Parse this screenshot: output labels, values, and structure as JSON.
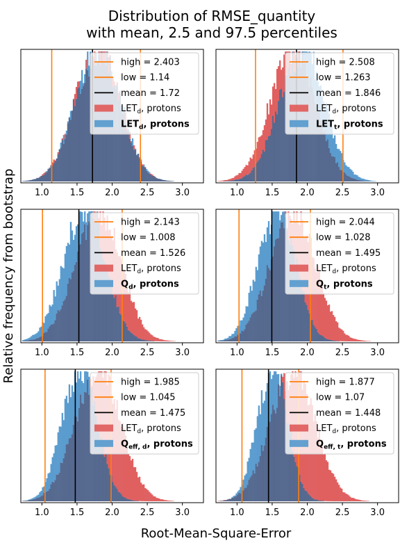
{
  "figure": {
    "title_line1": "Distribution of RMSE_quantity",
    "title_line2": "with mean, 2.5 and 97.5 percentiles",
    "xlabel": "Root-Mean-Square-Error",
    "ylabel": "Relative frequency from bootstrap"
  },
  "colors": {
    "reference_hist": "#e06060",
    "compared_hist": "#5b9ccf",
    "overlap": "#56698f",
    "percentile_line": "#ff7f0e",
    "mean_line": "#000000"
  },
  "chart_data": [
    {
      "type": "histogram",
      "panel": "top-left",
      "xlim": [
        0.7,
        3.3
      ],
      "xticks": [
        "1.0",
        "1.5",
        "2.0",
        "2.5",
        "3.0"
      ],
      "high": 2.403,
      "low": 1.14,
      "mean": 1.72,
      "legend": {
        "high": "high = 2.403",
        "low": "low = 1.14",
        "mean": "mean = 1.72",
        "ref_main": "LET",
        "ref_sub": "d",
        "ref_tail": ", protons",
        "cmp_main": "LET",
        "cmp_sub": "d",
        "cmp_tail": ", protons"
      },
      "series": [
        {
          "label": "LETd, protons",
          "dist_mean": 1.72,
          "dist_sd": 0.315,
          "dist_skew": 0.35
        },
        {
          "label": "LETd, protons",
          "dist_mean": 1.72,
          "dist_sd": 0.315,
          "dist_skew": 0.35
        }
      ]
    },
    {
      "type": "histogram",
      "panel": "top-right",
      "xlim": [
        0.7,
        3.3
      ],
      "xticks": [
        "1.0",
        "1.5",
        "2.0",
        "2.5",
        "3.0"
      ],
      "high": 2.508,
      "low": 1.263,
      "mean": 1.846,
      "legend": {
        "high": "high = 2.508",
        "low": "low = 1.263",
        "mean": "mean = 1.846",
        "ref_main": "LET",
        "ref_sub": "d",
        "ref_tail": ", protons",
        "cmp_main": "LET",
        "cmp_sub": "t",
        "cmp_tail": ", protons"
      },
      "series": [
        {
          "label": "LETd, protons",
          "dist_mean": 1.72,
          "dist_sd": 0.315,
          "dist_skew": 0.35
        },
        {
          "label": "LETt, protons",
          "dist_mean": 1.846,
          "dist_sd": 0.315,
          "dist_skew": 0.35
        }
      ]
    },
    {
      "type": "histogram",
      "panel": "middle-left",
      "xlim": [
        0.7,
        3.3
      ],
      "xticks": [
        "1.0",
        "1.5",
        "2.0",
        "2.5",
        "3.0"
      ],
      "high": 2.143,
      "low": 1.008,
      "mean": 1.526,
      "legend": {
        "high": "high = 2.143",
        "low": "low = 1.008",
        "mean": "mean = 1.526",
        "ref_main": "LET",
        "ref_sub": "d",
        "ref_tail": ", protons",
        "cmp_main": "Q",
        "cmp_sub": "d",
        "cmp_tail": ", protons"
      },
      "series": [
        {
          "label": "LETd, protons",
          "dist_mean": 1.72,
          "dist_sd": 0.315,
          "dist_skew": 0.35
        },
        {
          "label": "Qd, protons",
          "dist_mean": 1.526,
          "dist_sd": 0.285,
          "dist_skew": 0.45
        }
      ]
    },
    {
      "type": "histogram",
      "panel": "middle-right",
      "xlim": [
        0.7,
        3.3
      ],
      "xticks": [
        "1.0",
        "1.5",
        "2.0",
        "2.5",
        "3.0"
      ],
      "high": 2.044,
      "low": 1.028,
      "mean": 1.495,
      "legend": {
        "high": "high = 2.044",
        "low": "low = 1.028",
        "mean": "mean = 1.495",
        "ref_main": "LET",
        "ref_sub": "d",
        "ref_tail": ", protons",
        "cmp_main": "Q",
        "cmp_sub": "t",
        "cmp_tail": ", protons"
      },
      "series": [
        {
          "label": "LETd, protons",
          "dist_mean": 1.72,
          "dist_sd": 0.315,
          "dist_skew": 0.35
        },
        {
          "label": "Qt, protons",
          "dist_mean": 1.495,
          "dist_sd": 0.255,
          "dist_skew": 0.45
        }
      ]
    },
    {
      "type": "histogram",
      "panel": "bottom-left",
      "xlim": [
        0.7,
        3.3
      ],
      "xticks": [
        "1.0",
        "1.5",
        "2.0",
        "2.5",
        "3.0"
      ],
      "high": 1.985,
      "low": 1.045,
      "mean": 1.475,
      "legend": {
        "high": "high = 1.985",
        "low": "low = 1.045",
        "mean": "mean = 1.475",
        "ref_main": "LET",
        "ref_sub": "d",
        "ref_tail": ", protons",
        "cmp_main": "Q",
        "cmp_sub": "eff, d",
        "cmp_tail": ", protons"
      },
      "series": [
        {
          "label": "LETd, protons",
          "dist_mean": 1.72,
          "dist_sd": 0.315,
          "dist_skew": 0.35
        },
        {
          "label": "Qeff,d, protons",
          "dist_mean": 1.475,
          "dist_sd": 0.24,
          "dist_skew": 0.45
        }
      ]
    },
    {
      "type": "histogram",
      "panel": "bottom-right",
      "xlim": [
        0.7,
        3.3
      ],
      "xticks": [
        "1.0",
        "1.5",
        "2.0",
        "2.5",
        "3.0"
      ],
      "high": 1.877,
      "low": 1.07,
      "mean": 1.448,
      "legend": {
        "high": "high = 1.877",
        "low": "low = 1.07",
        "mean": "mean = 1.448",
        "ref_main": "LET",
        "ref_sub": "d",
        "ref_tail": ", protons",
        "cmp_main": "Q",
        "cmp_sub": "eff, t",
        "cmp_tail": ", protons"
      },
      "series": [
        {
          "label": "LETd, protons",
          "dist_mean": 1.72,
          "dist_sd": 0.315,
          "dist_skew": 0.35
        },
        {
          "label": "Qeff,t, protons",
          "dist_mean": 1.448,
          "dist_sd": 0.21,
          "dist_skew": 0.45
        }
      ]
    }
  ]
}
